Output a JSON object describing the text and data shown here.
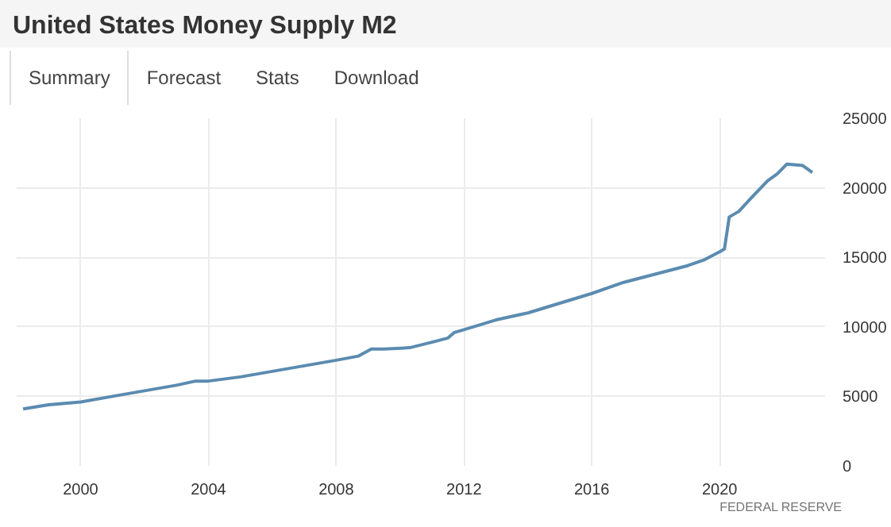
{
  "chart_data": {
    "type": "line",
    "title": "United States Money Supply M2",
    "annotations": [
      "Summary",
      "Forecast",
      "Stats",
      "Download",
      "FEDERAL RESERVE"
    ],
    "x": [
      1998.2,
      1999,
      2000,
      2001,
      2002,
      2003,
      2003.6,
      2004,
      2005,
      2006,
      2007,
      2008,
      2008.7,
      2009.1,
      2009.5,
      2010.3,
      2011,
      2011.5,
      2011.7,
      2012,
      2013,
      2014,
      2015,
      2016,
      2017,
      2018,
      2019,
      2019.5,
      2020.0,
      2020.15,
      2020.3,
      2020.6,
      2021,
      2021.5,
      2021.8,
      2022.1,
      2022.6,
      2022.9
    ],
    "series": [
      {
        "color": "#5b8bb0",
        "values": [
          4100,
          4400,
          4600,
          5000,
          5400,
          5800,
          6100,
          6100,
          6400,
          6800,
          7200,
          7600,
          7900,
          8400,
          8400,
          8500,
          8900,
          9200,
          9600,
          9800,
          10500,
          11000,
          11700,
          12400,
          13200,
          13800,
          14400,
          14800,
          15400,
          15600,
          17900,
          18300,
          19300,
          20500,
          21000,
          21700,
          21600,
          21100
        ]
      }
    ],
    "xlim": [
      1998,
      2023.3
    ],
    "ylim": [
      0,
      25000
    ],
    "xticks": [
      2000,
      2004,
      2008,
      2012,
      2016,
      2020
    ],
    "yticks": [
      0,
      5000,
      10000,
      15000,
      20000,
      25000
    ],
    "grid": true,
    "marker": "none",
    "line_style": "solid"
  }
}
